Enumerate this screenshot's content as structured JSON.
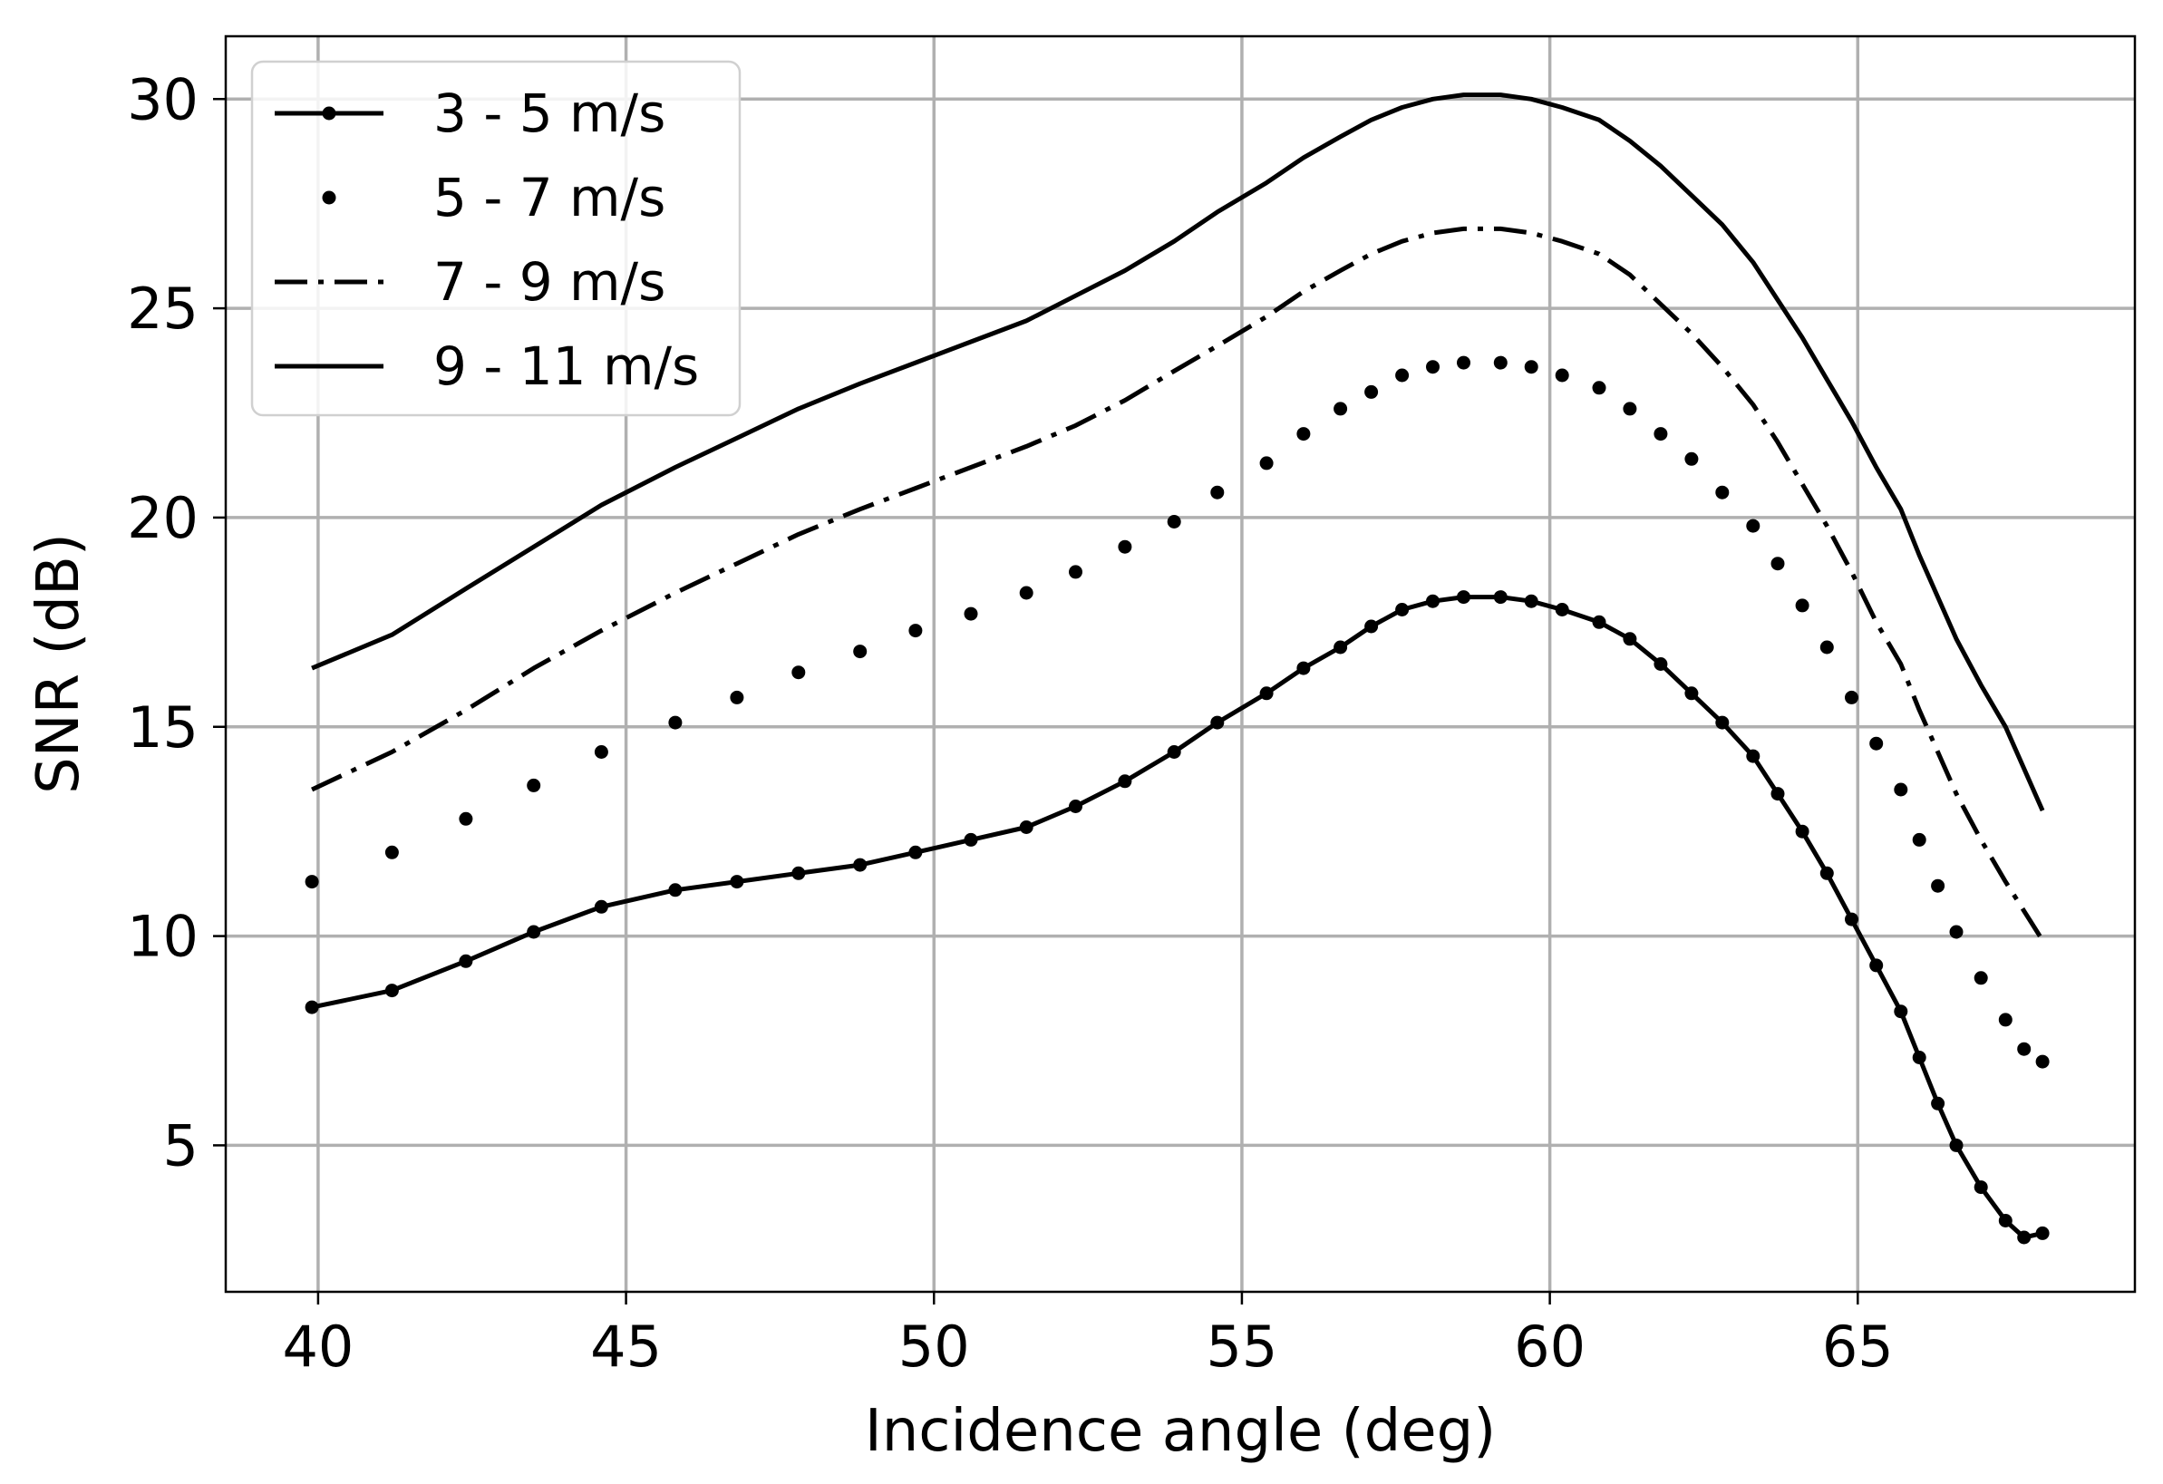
{
  "chart_data": {
    "type": "line",
    "title": "",
    "xlabel": "Incidence angle (deg)",
    "ylabel": "SNR (dB)",
    "xlim": [
      38.5,
      69.5
    ],
    "ylim": [
      1.5,
      31.5
    ],
    "xticks": [
      40,
      45,
      50,
      55,
      60,
      65
    ],
    "yticks": [
      5,
      10,
      15,
      20,
      25,
      30
    ],
    "grid": true,
    "legend_position": "top-left",
    "colors": {
      "line": "#000000",
      "grid": "#b0b0b0",
      "axis": "#000000"
    },
    "series": [
      {
        "name": "3 - 5 m/s",
        "style": "solid-marker",
        "x": [
          39.9,
          41.2,
          42.4,
          43.5,
          44.6,
          45.8,
          46.8,
          47.8,
          48.8,
          49.7,
          50.6,
          51.5,
          52.3,
          53.1,
          53.9,
          54.6,
          55.4,
          56.0,
          56.6,
          57.1,
          57.6,
          58.1,
          58.6,
          59.2,
          59.7,
          60.2,
          60.8,
          61.3,
          61.8,
          62.3,
          62.8,
          63.3,
          63.7,
          64.1,
          64.5,
          64.9,
          65.3,
          65.7,
          66.0,
          66.3,
          66.6,
          67.0,
          67.4,
          67.7,
          68.0
        ],
        "y": [
          8.3,
          8.7,
          9.4,
          10.1,
          10.7,
          11.1,
          11.3,
          11.5,
          11.7,
          12.0,
          12.3,
          12.6,
          13.1,
          13.7,
          14.4,
          15.1,
          15.8,
          16.4,
          16.9,
          17.4,
          17.8,
          18.0,
          18.1,
          18.1,
          18.0,
          17.8,
          17.5,
          17.1,
          16.5,
          15.8,
          15.1,
          14.3,
          13.4,
          12.5,
          11.5,
          10.4,
          9.3,
          8.2,
          7.1,
          6.0,
          5.0,
          4.0,
          3.2,
          2.8,
          2.9
        ]
      },
      {
        "name": "5 - 7 m/s",
        "style": "dotted-markers",
        "x": [
          39.9,
          41.2,
          42.4,
          43.5,
          44.6,
          45.8,
          46.8,
          47.8,
          48.8,
          49.7,
          50.6,
          51.5,
          52.3,
          53.1,
          53.9,
          54.6,
          55.4,
          56.0,
          56.6,
          57.1,
          57.6,
          58.1,
          58.6,
          59.2,
          59.7,
          60.2,
          60.8,
          61.3,
          61.8,
          62.3,
          62.8,
          63.3,
          63.7,
          64.1,
          64.5,
          64.9,
          65.3,
          65.7,
          66.0,
          66.3,
          66.6,
          67.0,
          67.4,
          67.7,
          68.0
        ],
        "y": [
          11.3,
          12.0,
          12.8,
          13.6,
          14.4,
          15.1,
          15.7,
          16.3,
          16.8,
          17.3,
          17.7,
          18.2,
          18.7,
          19.3,
          19.9,
          20.6,
          21.3,
          22.0,
          22.6,
          23.0,
          23.4,
          23.6,
          23.7,
          23.7,
          23.6,
          23.4,
          23.1,
          22.6,
          22.0,
          21.4,
          20.6,
          19.8,
          18.9,
          17.9,
          16.9,
          15.7,
          14.6,
          13.5,
          12.3,
          11.2,
          10.1,
          9.0,
          8.0,
          7.3,
          7.0
        ]
      },
      {
        "name": "7 - 9 m/s",
        "style": "dashdot",
        "x": [
          39.9,
          41.2,
          42.4,
          43.5,
          44.6,
          45.8,
          46.8,
          47.8,
          48.8,
          49.7,
          50.6,
          51.5,
          52.3,
          53.1,
          53.9,
          54.6,
          55.4,
          56.0,
          56.6,
          57.1,
          57.6,
          58.1,
          58.6,
          59.2,
          59.7,
          60.2,
          60.8,
          61.3,
          61.8,
          62.3,
          62.8,
          63.3,
          63.7,
          64.1,
          64.5,
          64.9,
          65.3,
          65.7,
          66.0,
          66.3,
          66.6,
          67.0,
          67.4,
          67.7,
          68.0
        ],
        "y": [
          13.5,
          14.4,
          15.4,
          16.4,
          17.3,
          18.2,
          18.9,
          19.6,
          20.2,
          20.7,
          21.2,
          21.7,
          22.2,
          22.8,
          23.5,
          24.1,
          24.8,
          25.4,
          25.9,
          26.3,
          26.6,
          26.8,
          26.9,
          26.9,
          26.8,
          26.6,
          26.3,
          25.8,
          25.1,
          24.4,
          23.6,
          22.7,
          21.8,
          20.8,
          19.8,
          18.7,
          17.5,
          16.5,
          15.4,
          14.4,
          13.4,
          12.3,
          11.3,
          10.6,
          9.9
        ]
      },
      {
        "name": "9 - 11 m/s",
        "style": "solid",
        "x": [
          39.9,
          41.2,
          42.4,
          43.5,
          44.6,
          45.8,
          46.8,
          47.8,
          48.8,
          49.7,
          50.6,
          51.5,
          52.3,
          53.1,
          53.9,
          54.6,
          55.4,
          56.0,
          56.6,
          57.1,
          57.6,
          58.1,
          58.6,
          59.2,
          59.7,
          60.2,
          60.8,
          61.3,
          61.8,
          62.3,
          62.8,
          63.3,
          63.7,
          64.1,
          64.5,
          64.9,
          65.3,
          65.7,
          66.0,
          66.3,
          66.6,
          67.0,
          67.4,
          67.7,
          68.0
        ],
        "y": [
          16.4,
          17.2,
          18.3,
          19.3,
          20.3,
          21.2,
          21.9,
          22.6,
          23.2,
          23.7,
          24.2,
          24.7,
          25.3,
          25.9,
          26.6,
          27.3,
          28.0,
          28.6,
          29.1,
          29.5,
          29.8,
          30.0,
          30.1,
          30.1,
          30.0,
          29.8,
          29.5,
          29.0,
          28.4,
          27.7,
          27.0,
          26.1,
          25.2,
          24.3,
          23.3,
          22.3,
          21.2,
          20.2,
          19.1,
          18.1,
          17.1,
          16.0,
          15.0,
          14.0,
          13.0
        ]
      }
    ]
  }
}
